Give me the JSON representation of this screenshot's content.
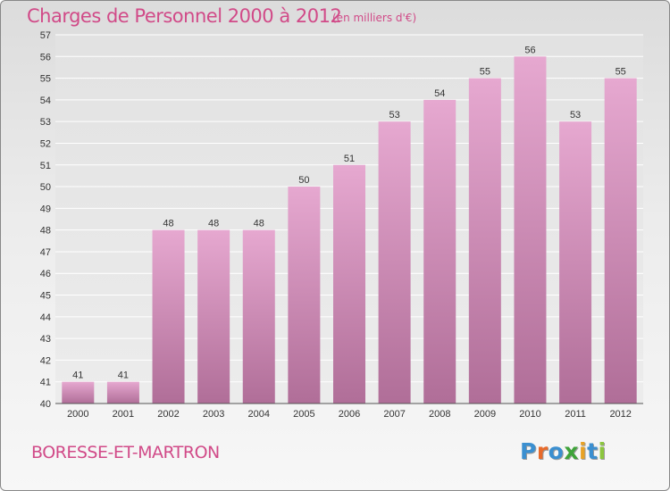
{
  "title": "Charges de Personnel 2000 à 2012",
  "subtitle": "(en milliers d'€)",
  "commune": "BORESSE-ET-MARTRON",
  "logo": {
    "text": "Proxiti",
    "letter_colors": [
      "#3b8fd0",
      "#e86a2a",
      "#3b8fd0",
      "#3fa33a",
      "#e8a225",
      "#3b8fd0",
      "#8cc63f"
    ]
  },
  "colors": {
    "title": "#d14a88",
    "bar_top": "#e6a8d0",
    "bar_bottom": "#b06e98",
    "grid": "#ffffff",
    "axis_text": "#333333"
  },
  "chart_data": {
    "type": "bar",
    "title": "Charges de Personnel 2000 à 2012",
    "subtitle": "(en milliers d'€)",
    "categories": [
      "2000",
      "2001",
      "2002",
      "2003",
      "2004",
      "2005",
      "2006",
      "2007",
      "2008",
      "2009",
      "2010",
      "2011",
      "2012"
    ],
    "values": [
      41,
      41,
      48,
      48,
      48,
      50,
      51,
      53,
      54,
      55,
      56,
      53,
      55
    ],
    "ylim": [
      40,
      57
    ],
    "yticks": [
      40,
      41,
      42,
      43,
      44,
      45,
      46,
      47,
      48,
      49,
      50,
      51,
      52,
      53,
      54,
      55,
      56,
      57
    ],
    "grid": true,
    "legend": "none",
    "data_labels": true
  }
}
